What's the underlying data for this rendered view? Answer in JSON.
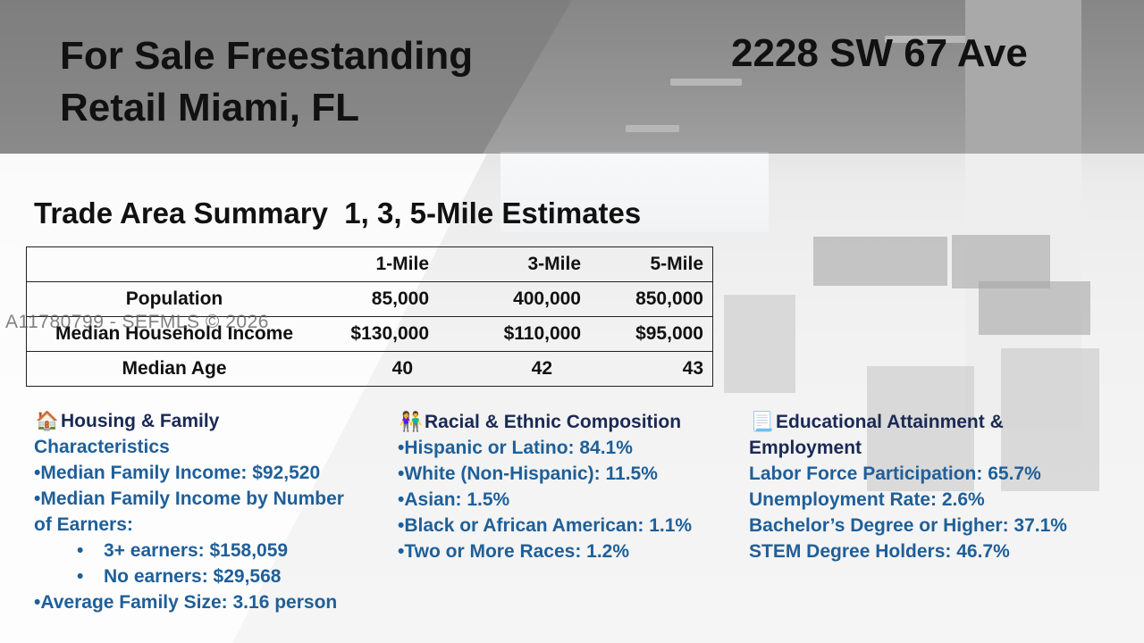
{
  "header": {
    "title": "For Sale Freestanding Retail Miami, FL",
    "address": "2228 SW 67 Ave"
  },
  "section_title": "Trade Area Summary  1, 3, 5-Mile Estimates",
  "table": {
    "columns": [
      "",
      "1-Mile",
      "3-Mile",
      "5-Mile"
    ],
    "rows": [
      {
        "label": "Population",
        "m1": "85,000",
        "m3": "400,000",
        "m5": "850,000"
      },
      {
        "label": "Median Household Income",
        "m1": "$130,000",
        "m3": "$110,000",
        "m5": "$95,000"
      },
      {
        "label": "Median Age",
        "m1": "40",
        "m3": "42",
        "m5": "43"
      }
    ]
  },
  "watermark": "A11780799 - SEFMLS © 2026",
  "housing": {
    "icon": "house-icon",
    "title_line1": "Housing & Family",
    "title_line2": "Characteristics",
    "items": [
      "•Median Family Income: $92,520",
      "•Median Family Income by Number",
      "of Earners:"
    ],
    "subitems": [
      "3+ earners: $158,059",
      "No earners: $29,568"
    ],
    "last_item": "•Average Family Size: 3.16 person"
  },
  "racial": {
    "icon": "people-icon",
    "title": "Racial & Ethnic Composition",
    "items": [
      "•Hispanic or Latino: 84.1%",
      "•White (Non-Hispanic): 11.5%",
      "•Asian: 1.5%",
      "•Black or African American: 1.1%",
      "•Two or More Races: 1.2%"
    ]
  },
  "education": {
    "icon": "scroll-icon",
    "title_line1": "Educational Attainment &",
    "title_line2": "Employment",
    "items": [
      "Labor Force Participation: 65.7%",
      "Unemployment Rate: 2.6%",
      "Bachelor’s Degree or Higher: 37.1%",
      "STEM Degree Holders: 46.7%"
    ]
  }
}
